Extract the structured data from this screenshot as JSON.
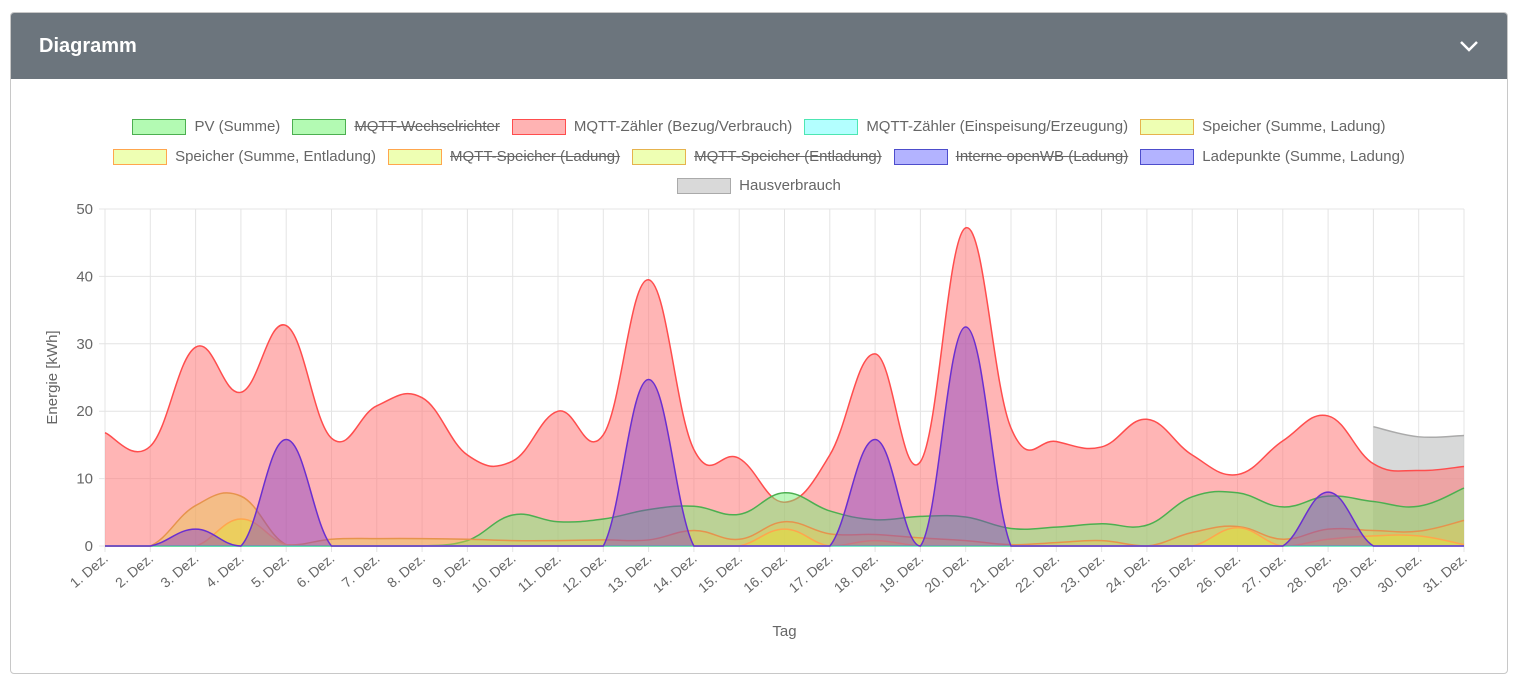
{
  "header": {
    "title": "Diagramm",
    "toggle_icon": "chevron-down-icon"
  },
  "legend": [
    {
      "label": "PV (Summe)",
      "fill": "#b3fab3",
      "border": "#4caf50",
      "hidden": false
    },
    {
      "label": "MQTT-Wechselrichter",
      "fill": "#b3fab3",
      "border": "#4caf50",
      "hidden": true
    },
    {
      "label": "MQTT-Zähler (Bezug/Verbrauch)",
      "fill": "#ffb3b3",
      "border": "#ff4d4d",
      "hidden": false
    },
    {
      "label": "MQTT-Zähler (Einspeisung/Erzeugung)",
      "fill": "#b3ffff",
      "border": "#4de6b3",
      "hidden": false
    },
    {
      "label": "Speicher (Summe, Ladung)",
      "fill": "#eeffb3",
      "border": "#e6b34d",
      "hidden": false
    },
    {
      "label": "Speicher (Summe, Entladung)",
      "fill": "#eeffb3",
      "border": "#ffa64d",
      "hidden": false
    },
    {
      "label": "MQTT-Speicher (Ladung)",
      "fill": "#eeffb3",
      "border": "#ffa64d",
      "hidden": true
    },
    {
      "label": "MQTT-Speicher (Entladung)",
      "fill": "#eeffb3",
      "border": "#e6b34d",
      "hidden": true
    },
    {
      "label": "Interne openWB (Ladung)",
      "fill": "#b3b3ff",
      "border": "#4d4dcc",
      "hidden": true
    },
    {
      "label": "Ladepunkte (Summe, Ladung)",
      "fill": "#b3b3ff",
      "border": "#4d4dcc",
      "hidden": false
    },
    {
      "label": "Hausverbrauch",
      "fill": "#d9d9d9",
      "border": "#aaaaaa",
      "hidden": false
    }
  ],
  "chart_data": {
    "type": "area",
    "xlabel": "Tag",
    "ylabel": "Energie [kWh]",
    "ylim": [
      0,
      50
    ],
    "yticks": [
      "0",
      "10",
      "20",
      "30",
      "40",
      "50"
    ],
    "grid": true,
    "categories": [
      "1. Dez.",
      "2. Dez.",
      "3. Dez.",
      "4. Dez.",
      "5. Dez.",
      "6. Dez.",
      "7. Dez.",
      "8. Dez.",
      "9. Dez.",
      "10. Dez.",
      "11. Dez.",
      "12. Dez.",
      "13. Dez.",
      "14. Dez.",
      "15. Dez.",
      "16. Dez.",
      "17. Dez.",
      "18. Dez.",
      "19. Dez.",
      "20. Dez.",
      "21. Dez.",
      "22. Dez.",
      "23. Dez.",
      "24. Dez.",
      "25. Dez.",
      "26. Dez.",
      "27. Dez.",
      "28. Dez.",
      "29. Dez.",
      "30. Dez.",
      "31. Dez."
    ],
    "series": [
      {
        "name": "Hausverbrauch",
        "color": "#aaaaaa",
        "fill": "rgba(190,192,192,0.6)",
        "values": [
          null,
          null,
          null,
          null,
          null,
          null,
          null,
          null,
          null,
          null,
          null,
          null,
          null,
          null,
          null,
          null,
          null,
          null,
          null,
          null,
          null,
          null,
          null,
          null,
          null,
          null,
          null,
          null,
          17.7,
          16.2,
          16.4
        ]
      },
      {
        "name": "MQTT-Zähler (Bezug/Verbrauch)",
        "color": "#ff4d4d",
        "fill": "rgba(255,120,120,0.55)",
        "values": [
          16.8,
          14.8,
          29.5,
          22.8,
          32.7,
          16,
          20.8,
          22,
          13.5,
          12.6,
          20,
          16.5,
          39.5,
          14.3,
          13,
          6.5,
          13.5,
          28.5,
          12.5,
          47.2,
          17.5,
          15.5,
          14.7,
          18.8,
          13.5,
          10.6,
          15.6,
          19.3,
          12.2,
          11.2,
          11.8
        ]
      },
      {
        "name": "PV (Summe)",
        "color": "#4caf50",
        "fill": "rgba(120,240,120,0.5)",
        "values": [
          0,
          0,
          0,
          0,
          0,
          0,
          0,
          0,
          0.8,
          4.6,
          3.6,
          4,
          5.4,
          5.9,
          4.7,
          7.9,
          5.2,
          3.9,
          4.4,
          4.3,
          2.6,
          2.8,
          3.3,
          3.1,
          7.3,
          7.9,
          5.8,
          7.4,
          6.6,
          5.9,
          8.6
        ]
      },
      {
        "name": "Speicher (Summe, Ladung)",
        "color": "#e6934d",
        "fill": "rgba(230,200,80,0.45)",
        "values": [
          0,
          0,
          6,
          7.4,
          0.2,
          1,
          1.1,
          1.1,
          1,
          0.8,
          0.8,
          0.9,
          0.9,
          2.3,
          1,
          3.6,
          1.8,
          1.7,
          1.2,
          0.8,
          0.2,
          0.5,
          0.8,
          0,
          2,
          2.9,
          1,
          2.5,
          2.3,
          2.2,
          3.8
        ]
      },
      {
        "name": "Speicher (Summe, Entladung)",
        "color": "#ffa64d",
        "fill": "rgba(230,220,60,0.55)",
        "values": [
          0,
          0,
          0,
          4,
          0.2,
          0,
          0,
          0,
          0,
          0,
          0,
          0,
          0,
          0,
          0,
          2.5,
          0,
          0.8,
          0,
          0,
          0,
          0,
          0,
          0,
          0,
          2.7,
          0,
          1,
          1.5,
          1.5,
          0.2
        ]
      },
      {
        "name": "MQTT-Zähler (Einspeisung/Erzeugung)",
        "color": "#4de6b3",
        "fill": "rgba(179,255,255,0.5)",
        "values": [
          0,
          0,
          0,
          0,
          0,
          0,
          0,
          0,
          0,
          0,
          0,
          0,
          0,
          0,
          0,
          0,
          0,
          0,
          0,
          0,
          0,
          0,
          0,
          0,
          0,
          0,
          0,
          0,
          0,
          0,
          0
        ]
      },
      {
        "name": "Ladepunkte (Summe, Ladung)",
        "color": "#6a2fd0",
        "fill": "rgba(130,60,200,0.45)",
        "values": [
          0,
          0,
          2.5,
          0,
          15.8,
          0,
          0,
          0,
          0,
          0,
          0,
          0,
          24.7,
          0,
          0,
          0,
          0,
          15.8,
          0,
          32.5,
          0,
          0,
          0,
          0,
          0,
          0,
          0,
          8,
          0,
          0,
          0
        ]
      }
    ]
  }
}
